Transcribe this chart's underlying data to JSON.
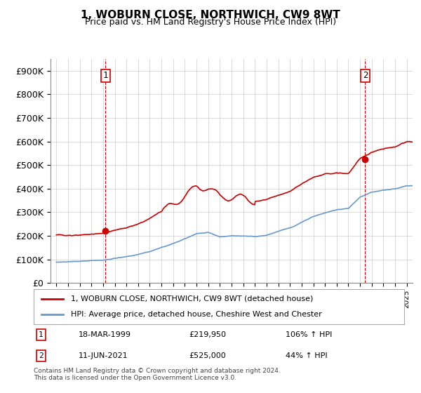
{
  "title": "1, WOBURN CLOSE, NORTHWICH, CW9 8WT",
  "subtitle": "Price paid vs. HM Land Registry's House Price Index (HPI)",
  "legend_line1": "1, WOBURN CLOSE, NORTHWICH, CW9 8WT (detached house)",
  "legend_line2": "HPI: Average price, detached house, Cheshire West and Chester",
  "sale1_label": "1",
  "sale1_date": "18-MAR-1999",
  "sale1_price": "£219,950",
  "sale1_hpi": "106% ↑ HPI",
  "sale1_year": 1999.21,
  "sale1_value": 219950,
  "sale2_label": "2",
  "sale2_date": "11-JUN-2021",
  "sale2_price": "£525,000",
  "sale2_hpi": "44% ↑ HPI",
  "sale2_year": 2021.44,
  "sale2_value": 525000,
  "red_line_color": "#cc0000",
  "blue_line_color": "#6699cc",
  "dashed_line_color": "#cc0000",
  "grid_color": "#cccccc",
  "background_color": "#ffffff",
  "ylim": [
    0,
    950000
  ],
  "yticks": [
    0,
    100000,
    200000,
    300000,
    400000,
    500000,
    600000,
    700000,
    800000,
    900000
  ],
  "ytick_labels": [
    "£0",
    "£100K",
    "£200K",
    "£300K",
    "£400K",
    "£500K",
    "£600K",
    "£700K",
    "£800K",
    "£900K"
  ],
  "footer_text": "Contains HM Land Registry data © Crown copyright and database right 2024.\nThis data is licensed under the Open Government Licence v3.0.",
  "xlim_start": 1994.5,
  "xlim_end": 2025.5
}
